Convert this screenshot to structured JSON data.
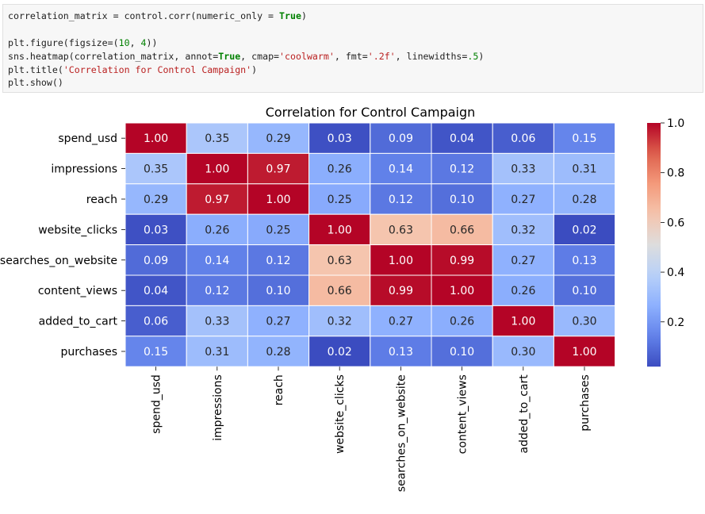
{
  "code": {
    "lines": [
      [
        {
          "t": "correlation_matrix = control.corr(numeric_only = ",
          "c": ""
        },
        {
          "t": "True",
          "c": "kw"
        },
        {
          "t": ")",
          "c": ""
        }
      ],
      [],
      [
        {
          "t": "plt.figure(figsize=(",
          "c": ""
        },
        {
          "t": "10",
          "c": "num"
        },
        {
          "t": ", ",
          "c": ""
        },
        {
          "t": "4",
          "c": "num"
        },
        {
          "t": "))",
          "c": ""
        }
      ],
      [
        {
          "t": "sns.heatmap(correlation_matrix, annot=",
          "c": ""
        },
        {
          "t": "True",
          "c": "kw"
        },
        {
          "t": ", cmap=",
          "c": ""
        },
        {
          "t": "'coolwarm'",
          "c": "str"
        },
        {
          "t": ", fmt=",
          "c": ""
        },
        {
          "t": "'.2f'",
          "c": "str"
        },
        {
          "t": ", linewidths=",
          "c": ""
        },
        {
          "t": ".5",
          "c": "num"
        },
        {
          "t": ")",
          "c": ""
        }
      ],
      [
        {
          "t": "plt.title(",
          "c": ""
        },
        {
          "t": "'Correlation for Control Campaign'",
          "c": "str"
        },
        {
          "t": ")",
          "c": ""
        }
      ],
      [
        {
          "t": "plt.show()",
          "c": ""
        }
      ]
    ]
  },
  "chart_data": {
    "type": "heatmap",
    "title": "Correlation for Control Campaign",
    "rows": [
      "spend_usd",
      "impressions",
      "reach",
      "website_clicks",
      "searches_on_website",
      "content_views",
      "added_to_cart",
      "purchases"
    ],
    "columns": [
      "spend_usd",
      "impressions",
      "reach",
      "website_clicks",
      "searches_on_website",
      "content_views",
      "added_to_cart",
      "purchases"
    ],
    "values": [
      [
        1.0,
        0.35,
        0.29,
        0.03,
        0.09,
        0.04,
        0.06,
        0.15
      ],
      [
        0.35,
        1.0,
        0.97,
        0.26,
        0.14,
        0.12,
        0.33,
        0.31
      ],
      [
        0.29,
        0.97,
        1.0,
        0.25,
        0.12,
        0.1,
        0.27,
        0.28
      ],
      [
        0.03,
        0.26,
        0.25,
        1.0,
        0.63,
        0.66,
        0.32,
        0.02
      ],
      [
        0.09,
        0.14,
        0.12,
        0.63,
        1.0,
        0.99,
        0.27,
        0.13
      ],
      [
        0.04,
        0.12,
        0.1,
        0.66,
        0.99,
        1.0,
        0.26,
        0.1
      ],
      [
        0.06,
        0.33,
        0.27,
        0.32,
        0.27,
        0.26,
        1.0,
        0.3
      ],
      [
        0.15,
        0.31,
        0.28,
        0.02,
        0.13,
        0.1,
        0.3,
        1.0
      ]
    ],
    "value_format": ".2f",
    "colormap": "coolwarm",
    "vmin": 0.02,
    "vmax": 1.0,
    "colorbar": {
      "ticks": [
        0.2,
        0.4,
        0.6,
        0.8,
        1.0
      ],
      "tick_labels": [
        "0.2",
        "0.4",
        "0.6",
        "0.8",
        "1.0"
      ],
      "placement": "right"
    },
    "cell_border_color": "#ffffff"
  }
}
